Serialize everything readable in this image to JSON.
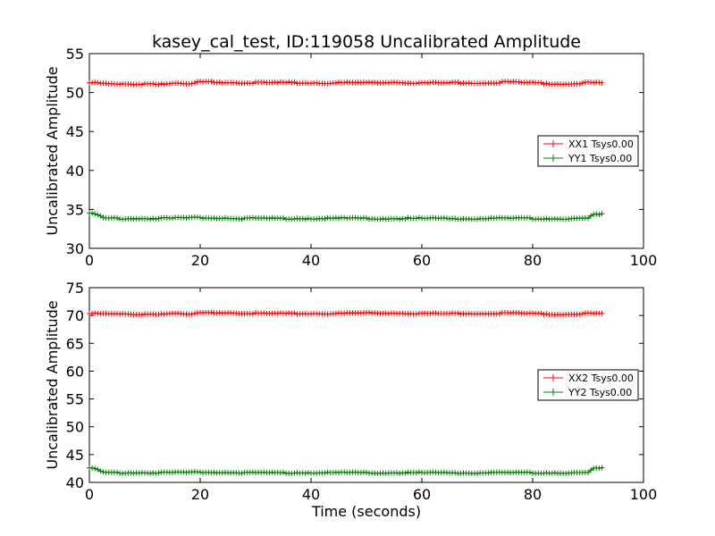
{
  "figure": {
    "title": "kasey_cal_test, ID:119058 Uncalibrated Amplitude",
    "xlabel": "Time (seconds)"
  },
  "chart_data": [
    {
      "type": "line",
      "ylabel": "Uncalibrated Amplitude",
      "xlim": [
        0,
        100
      ],
      "ylim": [
        30,
        55
      ],
      "xticks": [
        0,
        20,
        40,
        60,
        80,
        100
      ],
      "yticks": [
        30,
        35,
        40,
        45,
        50,
        55
      ],
      "grid": false,
      "legend_position": "right",
      "x_range": [
        0,
        92.5
      ],
      "series": [
        {
          "name": "XX1 Tsys0.00",
          "color": "#ff0000",
          "marker": "+",
          "x": [
            0,
            5,
            10,
            15,
            18,
            20,
            25,
            30,
            35,
            40,
            45,
            50,
            55,
            60,
            65,
            70,
            75,
            80,
            85,
            90,
            92.5
          ],
          "y": [
            51.3,
            51.1,
            51.2,
            51.2,
            51.1,
            51.4,
            51.4,
            51.3,
            51.3,
            51.3,
            51.3,
            51.3,
            51.4,
            51.3,
            51.3,
            51.3,
            51.4,
            51.3,
            51.2,
            51.3,
            51.3
          ]
        },
        {
          "name": "YY1 Tsys0.00",
          "color": "#008000",
          "marker": "+",
          "x": [
            0,
            1,
            2,
            3,
            5,
            10,
            15,
            20,
            30,
            40,
            50,
            60,
            70,
            80,
            88,
            90,
            91,
            92.5
          ],
          "y": [
            34.5,
            34.4,
            34.1,
            33.9,
            33.9,
            33.9,
            33.9,
            34.0,
            33.9,
            33.9,
            33.9,
            33.9,
            33.9,
            33.9,
            33.9,
            33.9,
            34.4,
            34.4
          ]
        }
      ]
    },
    {
      "type": "line",
      "ylabel": "Uncalibrated Amplitude",
      "xlim": [
        0,
        100
      ],
      "ylim": [
        40,
        75
      ],
      "xticks": [
        0,
        20,
        40,
        60,
        80,
        100
      ],
      "yticks": [
        40,
        45,
        50,
        55,
        60,
        65,
        70,
        75
      ],
      "grid": false,
      "legend_position": "right",
      "series": [
        {
          "name": "XX2 Tsys0.00",
          "color": "#ff0000",
          "marker": "+",
          "x": [
            0,
            5,
            10,
            15,
            18,
            20,
            25,
            30,
            35,
            40,
            45,
            50,
            55,
            60,
            65,
            70,
            75,
            80,
            85,
            90,
            92.5
          ],
          "y": [
            70.4,
            70.3,
            70.3,
            70.4,
            70.2,
            70.5,
            70.6,
            70.4,
            70.4,
            70.4,
            70.4,
            70.5,
            70.5,
            70.4,
            70.4,
            70.4,
            70.5,
            70.4,
            70.3,
            70.4,
            70.4
          ]
        },
        {
          "name": "YY2 Tsys0.00",
          "color": "#008000",
          "marker": "+",
          "x": [
            0,
            1,
            2,
            3,
            5,
            10,
            15,
            20,
            30,
            40,
            50,
            60,
            70,
            80,
            88,
            90,
            91,
            92.5
          ],
          "y": [
            42.6,
            42.5,
            42.0,
            41.8,
            41.8,
            41.8,
            41.8,
            41.9,
            41.8,
            41.8,
            41.8,
            41.8,
            41.8,
            41.8,
            41.8,
            41.8,
            42.6,
            42.6
          ]
        }
      ]
    }
  ]
}
